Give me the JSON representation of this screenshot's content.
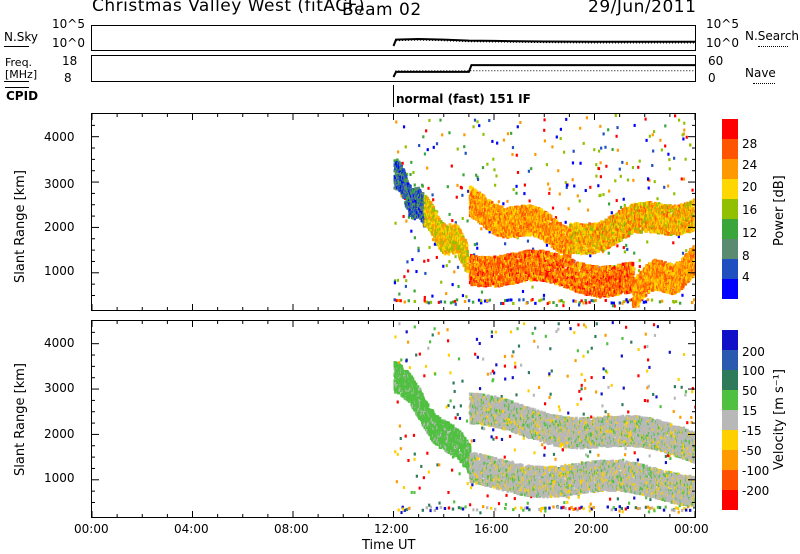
{
  "header": {
    "station": "Christmas Valley West (fitACF)",
    "beam": "Beam 02",
    "date": "29/Jun/2011"
  },
  "panels": {
    "nsky": {
      "label": "N.Sky",
      "ticks": [
        "10^5",
        "10^0"
      ],
      "right_label": "N.Search",
      "right_ticks": [
        "10^5",
        "10^0"
      ]
    },
    "freq": {
      "label_line1": "Freq.",
      "label_line2": "[MHz]",
      "ticks": [
        "18",
        "8"
      ],
      "right_label": "Nave",
      "right_ticks": [
        "60",
        "0"
      ]
    },
    "cpid": {
      "label": "CPID",
      "mode": "normal (fast) 151 IF"
    }
  },
  "axes": {
    "ylabel": "Slant Range [km]",
    "xlabel": "Time UT",
    "y_ticks": [
      "4000",
      "3000",
      "2000",
      "1000"
    ],
    "x_ticks": [
      "00:00",
      "04:00",
      "08:00",
      "12:00",
      "16:00",
      "20:00",
      "00:00"
    ]
  },
  "colorbars": {
    "power": {
      "label": "Power [dB]",
      "ticks": [
        "28",
        "24",
        "20",
        "16",
        "12",
        "8",
        "4"
      ],
      "colors": [
        "#ff0000",
        "#ff5500",
        "#ff9900",
        "#ffd700",
        "#90c000",
        "#3aa53a",
        "#5a8a70",
        "#2050c0",
        "#0000ff"
      ]
    },
    "velocity": {
      "label": "Velocity [m s⁻¹]",
      "ticks": [
        "200",
        "100",
        "50",
        "15",
        "-15",
        "-50",
        "-100",
        "-200"
      ],
      "colors": [
        "#1010c8",
        "#2a5ab0",
        "#2e7a5a",
        "#50c040",
        "#b8b8b8",
        "#ffd000",
        "#ff9a00",
        "#ff5000",
        "#ff0000"
      ]
    }
  },
  "chart_data": [
    {
      "type": "heatmap",
      "title": "Power",
      "xlabel": "Time UT",
      "ylabel": "Slant Range [km]",
      "xlim": [
        "00:00",
        "24:00"
      ],
      "ylim": [
        180,
        4500
      ],
      "clim": [
        0,
        30
      ],
      "colorbar_label": "Power [dB]",
      "features": [
        {
          "t_start": 12.0,
          "t_end": 13.2,
          "range_start": 3200,
          "range_end": 2300,
          "power": 6
        },
        {
          "t_start": 13.2,
          "t_end": 14.9,
          "range_start": 2300,
          "range_end": 1400,
          "power": 20
        },
        {
          "t_start": 15.0,
          "t_end": 19.0,
          "range_start": 2500,
          "range_end": 1800,
          "power": 24
        },
        {
          "t_start": 19.0,
          "t_end": 24.0,
          "range_start": 1800,
          "range_end": 2400,
          "power": 22
        },
        {
          "t_start": 15.0,
          "t_end": 21.5,
          "range_start": 1200,
          "range_end": 900,
          "power": 26
        },
        {
          "t_start": 21.5,
          "t_end": 24.0,
          "range_start": 700,
          "range_end": 1200,
          "power": 24
        }
      ]
    },
    {
      "type": "heatmap",
      "title": "Velocity",
      "xlabel": "Time UT",
      "ylabel": "Slant Range [km]",
      "xlim": [
        "00:00",
        "24:00"
      ],
      "ylim": [
        180,
        4500
      ],
      "clim": [
        -200,
        200
      ],
      "colorbar_label": "Velocity [m s⁻¹]",
      "features": [
        {
          "t_start": 12.0,
          "t_end": 15.0,
          "range_start": 3300,
          "range_end": 1400,
          "velocity": 30
        },
        {
          "t_start": 15.0,
          "t_end": 24.0,
          "range_start": 2500,
          "range_end": 1800,
          "velocity": 0
        },
        {
          "t_start": 15.0,
          "t_end": 24.0,
          "range_start": 1200,
          "range_end": 900,
          "velocity": 0
        }
      ]
    },
    {
      "type": "line",
      "title": "N.Sky / N.Search",
      "x": [
        12.0,
        12.1,
        13.0,
        14.0,
        15.0,
        16.0,
        18.0,
        20.0,
        22.0,
        24.0
      ],
      "series": [
        {
          "name": "N.Search",
          "values": [
            0,
            2.0,
            2.2,
            2.0,
            1.7,
            1.6,
            1.4,
            1.3,
            1.3,
            1.3
          ]
        }
      ]
    },
    {
      "type": "line",
      "title": "Freq. / Nave",
      "x": [
        12.0,
        12.1,
        15.0,
        15.1,
        24.0
      ],
      "series": [
        {
          "name": "Freq.",
          "values": [
            8,
            11,
            11,
            15,
            15
          ]
        },
        {
          "name": "Nave",
          "values": [
            0,
            22,
            22,
            22,
            22
          ]
        }
      ]
    }
  ]
}
